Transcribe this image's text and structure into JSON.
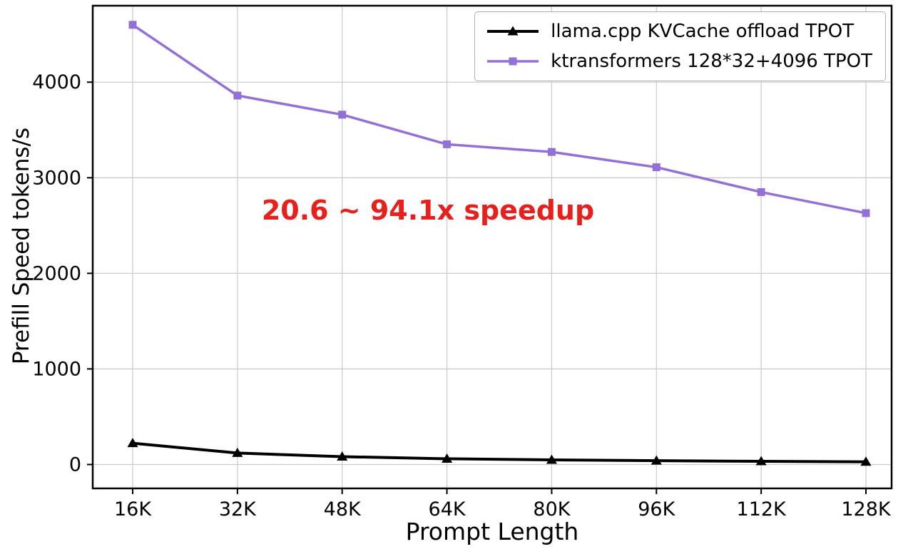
{
  "chart_data": {
    "type": "line",
    "title": "",
    "xlabel": "Prompt Length",
    "ylabel": "Prefill Speed tokens/s",
    "categories": [
      "16K",
      "32K",
      "48K",
      "64K",
      "80K",
      "96K",
      "112K",
      "128K"
    ],
    "yticks": [
      0,
      1000,
      2000,
      3000,
      4000
    ],
    "ylim": [
      -250,
      4800
    ],
    "grid": true,
    "grid_color": "#cccccc",
    "legend_position": "upper right",
    "annotation": {
      "text": "20.6 ~ 94.1x speedup",
      "color": "#e8201c"
    },
    "series": [
      {
        "name": "llama.cpp KVCache offload TPOT",
        "color": "#000000",
        "marker": "triangle",
        "linewidth": 4,
        "values": [
          223,
          120,
          82,
          60,
          48,
          40,
          33,
          28
        ]
      },
      {
        "name": "ktransformers 128*32+4096 TPOT",
        "color": "#9370d8",
        "marker": "square",
        "linewidth": 3.5,
        "values": [
          4600,
          3860,
          3660,
          3350,
          3270,
          3110,
          2850,
          2630
        ]
      }
    ]
  }
}
